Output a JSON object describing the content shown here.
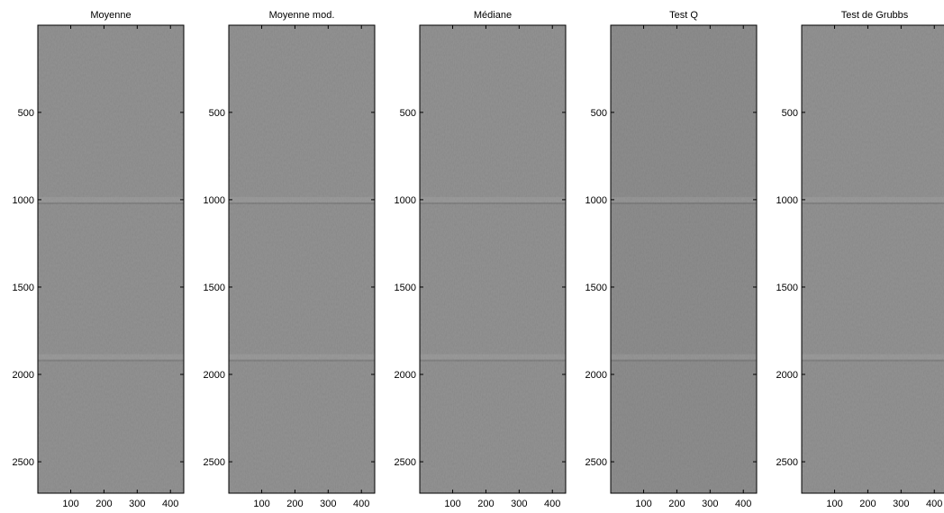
{
  "figure": {
    "background": "#ffffff",
    "image_base_color": "#7b7b7b",
    "image_base_color_darker": "#727272",
    "frame_color": "#000000"
  },
  "chart_data": [
    {
      "type": "heatmap",
      "title": "Moyenne",
      "xlabel": "",
      "ylabel": "",
      "xlim": [
        1,
        440
      ],
      "ylim": [
        2680,
        1
      ],
      "yaxis_direction": "top-down",
      "xticks": [
        100,
        200,
        300,
        400
      ],
      "yticks": [
        500,
        1000,
        1500,
        2000,
        2500
      ],
      "colormap": "gray",
      "mean_level": 0.48,
      "horizontal_bands_at_y": [
        1000,
        1900
      ],
      "grid": false,
      "legend": "none"
    },
    {
      "type": "heatmap",
      "title": "Moyenne mod.",
      "xlabel": "",
      "ylabel": "",
      "xlim": [
        1,
        440
      ],
      "ylim": [
        2680,
        1
      ],
      "yaxis_direction": "top-down",
      "xticks": [
        100,
        200,
        300,
        400
      ],
      "yticks": [
        500,
        1000,
        1500,
        2000,
        2500
      ],
      "colormap": "gray",
      "mean_level": 0.48,
      "horizontal_bands_at_y": [
        1000,
        1900
      ],
      "grid": false,
      "legend": "none"
    },
    {
      "type": "heatmap",
      "title": "Médiane",
      "xlabel": "",
      "ylabel": "",
      "xlim": [
        1,
        440
      ],
      "ylim": [
        2680,
        1
      ],
      "yaxis_direction": "top-down",
      "xticks": [
        100,
        200,
        300,
        400
      ],
      "yticks": [
        500,
        1000,
        1500,
        2000,
        2500
      ],
      "colormap": "gray",
      "mean_level": 0.48,
      "horizontal_bands_at_y": [
        1000,
        1900
      ],
      "grid": false,
      "legend": "none"
    },
    {
      "type": "heatmap",
      "title": "Test Q",
      "xlabel": "",
      "ylabel": "",
      "xlim": [
        1,
        440
      ],
      "ylim": [
        2680,
        1
      ],
      "yaxis_direction": "top-down",
      "xticks": [
        100,
        200,
        300,
        400
      ],
      "yticks": [
        500,
        1000,
        1500,
        2000,
        2500
      ],
      "colormap": "gray",
      "mean_level": 0.45,
      "horizontal_bands_at_y": [
        1000,
        1900
      ],
      "grid": false,
      "legend": "none"
    },
    {
      "type": "heatmap",
      "title": "Test de Grubbs",
      "xlabel": "",
      "ylabel": "",
      "xlim": [
        1,
        440
      ],
      "ylim": [
        2680,
        1
      ],
      "yaxis_direction": "top-down",
      "xticks": [
        100,
        200,
        300,
        400
      ],
      "yticks": [
        500,
        1000,
        1500,
        2000,
        2500
      ],
      "colormap": "gray",
      "mean_level": 0.48,
      "horizontal_bands_at_y": [
        1000,
        1900
      ],
      "grid": false,
      "legend": "none"
    }
  ]
}
